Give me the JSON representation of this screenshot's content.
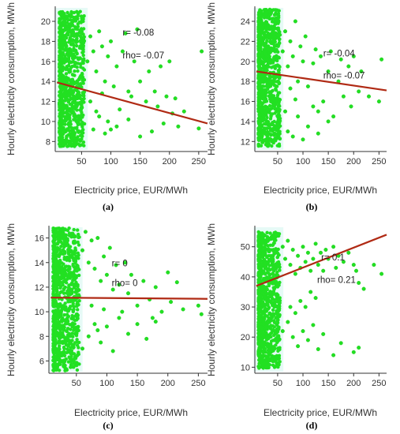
{
  "chart_data": [
    {
      "type": "scatter",
      "caption": "(a)",
      "ylabel": "Hourly electricity consumption, MWh",
      "xlabel": "Electricity price, EUR/MWh",
      "xticks": [
        50,
        100,
        150,
        200,
        250
      ],
      "yticks": [
        8,
        10,
        12,
        14,
        16,
        18,
        20
      ],
      "xlim": [
        5,
        265
      ],
      "ylim": [
        7,
        21.5
      ],
      "cloud": {
        "x": [
          12,
          55
        ],
        "y": [
          7.5,
          21
        ]
      },
      "sparse": [
        [
          60,
          16
        ],
        [
          65,
          18.5
        ],
        [
          70,
          17
        ],
        [
          75,
          15
        ],
        [
          80,
          19
        ],
        [
          85,
          17.5
        ],
        [
          90,
          14
        ],
        [
          95,
          16.5
        ],
        [
          100,
          18
        ],
        [
          105,
          13.5
        ],
        [
          110,
          15.5
        ],
        [
          120,
          17
        ],
        [
          125,
          18.8
        ],
        [
          130,
          13
        ],
        [
          140,
          16
        ],
        [
          145,
          19.2
        ],
        [
          150,
          14
        ],
        [
          160,
          12
        ],
        [
          165,
          15
        ],
        [
          175,
          13
        ],
        [
          180,
          11.5
        ],
        [
          185,
          15.5
        ],
        [
          195,
          12.5
        ],
        [
          200,
          16
        ],
        [
          205,
          10.8
        ],
        [
          210,
          12.3
        ],
        [
          215,
          9.5
        ],
        [
          225,
          11
        ],
        [
          250,
          9.3
        ],
        [
          255,
          17
        ],
        [
          70,
          9.2
        ],
        [
          80,
          10.5
        ],
        [
          90,
          8.8
        ],
        [
          110,
          9.5
        ],
        [
          130,
          10.2
        ],
        [
          150,
          8.5
        ],
        [
          170,
          9
        ],
        [
          190,
          9.8
        ],
        [
          65,
          12
        ],
        [
          75,
          11
        ],
        [
          95,
          10
        ],
        [
          115,
          11.2
        ],
        [
          135,
          12.5
        ],
        [
          85,
          12.8
        ],
        [
          100,
          9.2
        ]
      ],
      "regression": {
        "x": [
          8,
          265
        ],
        "y": [
          13.9,
          9.8
        ]
      },
      "stats": {
        "r": "r= -0.08",
        "rho": "rho= -0.07"
      },
      "stats_at": {
        "r": [
          120,
          18.6
        ],
        "rho": [
          120,
          16.3
        ]
      }
    },
    {
      "type": "scatter",
      "caption": "(b)",
      "ylabel": "Hourly electricity consumption, MWh",
      "xlabel": "Electricity price, EUR/MWh",
      "xticks": [
        50,
        100,
        150,
        200,
        250
      ],
      "yticks": [
        12,
        14,
        16,
        18,
        20,
        22,
        24
      ],
      "xlim": [
        5,
        265
      ],
      "ylim": [
        11,
        25.5
      ],
      "cloud": {
        "x": [
          12,
          55
        ],
        "y": [
          11.5,
          25.2
        ]
      },
      "sparse": [
        [
          60,
          21
        ],
        [
          65,
          23
        ],
        [
          70,
          19.5
        ],
        [
          75,
          22
        ],
        [
          80,
          20.5
        ],
        [
          85,
          24
        ],
        [
          90,
          18
        ],
        [
          95,
          21.5
        ],
        [
          100,
          20
        ],
        [
          105,
          22.5
        ],
        [
          110,
          17.5
        ],
        [
          120,
          19.8
        ],
        [
          125,
          21.2
        ],
        [
          130,
          15
        ],
        [
          135,
          20.5
        ],
        [
          140,
          16
        ],
        [
          150,
          19
        ],
        [
          155,
          21
        ],
        [
          160,
          14.5
        ],
        [
          170,
          18
        ],
        [
          175,
          20.2
        ],
        [
          180,
          16.5
        ],
        [
          190,
          19.5
        ],
        [
          195,
          15.5
        ],
        [
          200,
          20.5
        ],
        [
          210,
          17
        ],
        [
          215,
          19
        ],
        [
          230,
          16.5
        ],
        [
          250,
          16
        ],
        [
          255,
          20.2
        ],
        [
          70,
          13
        ],
        [
          80,
          12.5
        ],
        [
          90,
          14.5
        ],
        [
          110,
          13.5
        ],
        [
          130,
          12.8
        ],
        [
          150,
          14
        ],
        [
          100,
          12.2
        ],
        [
          120,
          15.5
        ],
        [
          85,
          16.2
        ],
        [
          75,
          17.3
        ],
        [
          65,
          15
        ]
      ],
      "regression": {
        "x": [
          8,
          265
        ],
        "y": [
          19.0,
          17.1
        ]
      },
      "stats": {
        "r": "r= -0.04",
        "rho": "rho= -0.07"
      },
      "stats_at": {
        "r": [
          140,
          20.5
        ],
        "rho": [
          140,
          18.3
        ]
      }
    },
    {
      "type": "scatter",
      "caption": "(c)",
      "ylabel": "Hourly electricity consumption, MWh",
      "xlabel": "Electricity price, EUR/MWh",
      "xticks": [
        50,
        100,
        150,
        200,
        250
      ],
      "yticks": [
        6,
        8,
        10,
        12,
        14,
        16
      ],
      "xlim": [
        5,
        265
      ],
      "ylim": [
        5,
        17
      ],
      "cloud": {
        "x": [
          12,
          55
        ],
        "y": [
          5.2,
          16.8
        ]
      },
      "sparse": [
        [
          60,
          15
        ],
        [
          65,
          16.5
        ],
        [
          70,
          14
        ],
        [
          75,
          15.8
        ],
        [
          80,
          13.5
        ],
        [
          85,
          16
        ],
        [
          90,
          12.5
        ],
        [
          95,
          14.5
        ],
        [
          100,
          13
        ],
        [
          105,
          15.2
        ],
        [
          110,
          11.8
        ],
        [
          115,
          13.8
        ],
        [
          120,
          12.2
        ],
        [
          130,
          14
        ],
        [
          135,
          11.5
        ],
        [
          140,
          13
        ],
        [
          150,
          10.5
        ],
        [
          160,
          12.5
        ],
        [
          170,
          11
        ],
        [
          175,
          9.5
        ],
        [
          180,
          12
        ],
        [
          190,
          10
        ],
        [
          200,
          13.2
        ],
        [
          205,
          10.8
        ],
        [
          215,
          12.4
        ],
        [
          225,
          10.2
        ],
        [
          250,
          10.5
        ],
        [
          255,
          9.8
        ],
        [
          70,
          8
        ],
        [
          80,
          9
        ],
        [
          90,
          7.5
        ],
        [
          100,
          8.8
        ],
        [
          110,
          6.8
        ],
        [
          120,
          9.5
        ],
        [
          135,
          8.2
        ],
        [
          150,
          9
        ],
        [
          165,
          7.8
        ],
        [
          180,
          9.2
        ],
        [
          75,
          10.5
        ],
        [
          95,
          10.2
        ],
        [
          125,
          10
        ],
        [
          85,
          8.5
        ],
        [
          60,
          7
        ]
      ],
      "regression": {
        "x": [
          8,
          265
        ],
        "y": [
          11.15,
          11.05
        ]
      },
      "stats": {
        "r": "r= 0",
        "rho": "rho= 0"
      },
      "stats_at": {
        "r": [
          108,
          13.7
        ],
        "rho": [
          108,
          12.1
        ]
      }
    },
    {
      "type": "scatter",
      "caption": "(d)",
      "ylabel": "Hourly electricity consumption, MWh",
      "xlabel": "Electricity price, EUR/MWh",
      "xticks": [
        50,
        100,
        150,
        200,
        250
      ],
      "yticks": [
        10,
        20,
        30,
        40,
        50
      ],
      "xlim": [
        5,
        265
      ],
      "ylim": [
        8,
        57
      ],
      "cloud": {
        "x": [
          12,
          55
        ],
        "y": [
          9.5,
          55
        ]
      },
      "sparse": [
        [
          60,
          50
        ],
        [
          65,
          46
        ],
        [
          70,
          52
        ],
        [
          75,
          44
        ],
        [
          80,
          49
        ],
        [
          85,
          41
        ],
        [
          90,
          47
        ],
        [
          95,
          43
        ],
        [
          100,
          50
        ],
        [
          105,
          45
        ],
        [
          110,
          48
        ],
        [
          115,
          42
        ],
        [
          120,
          46
        ],
        [
          125,
          51
        ],
        [
          130,
          44
        ],
        [
          135,
          48
        ],
        [
          140,
          42
        ],
        [
          145,
          49
        ],
        [
          150,
          46
        ],
        [
          160,
          50
        ],
        [
          165,
          43
        ],
        [
          170,
          47
        ],
        [
          180,
          45
        ],
        [
          190,
          48
        ],
        [
          200,
          44
        ],
        [
          205,
          42
        ],
        [
          210,
          38
        ],
        [
          220,
          36
        ],
        [
          240,
          44
        ],
        [
          255,
          41
        ],
        [
          70,
          25
        ],
        [
          80,
          20
        ],
        [
          90,
          17
        ],
        [
          100,
          22
        ],
        [
          110,
          19
        ],
        [
          120,
          24
        ],
        [
          130,
          16
        ],
        [
          140,
          21
        ],
        [
          160,
          14
        ],
        [
          175,
          18
        ],
        [
          200,
          15
        ],
        [
          210,
          16.5
        ],
        [
          85,
          28
        ],
        [
          95,
          32
        ],
        [
          105,
          30
        ],
        [
          115,
          35
        ],
        [
          125,
          33
        ],
        [
          60,
          22
        ],
        [
          75,
          30
        ]
      ],
      "regression": {
        "x": [
          8,
          265
        ],
        "y": [
          37.0,
          54.0
        ]
      },
      "stats": {
        "r": "r= 0.1",
        "rho": "rho= 0.21"
      },
      "stats_at": {
        "r": [
          136,
          45.5
        ],
        "rho": [
          128,
          38.0
        ]
      }
    }
  ],
  "colors": {
    "points": "#22e022",
    "point_edge": "#18c818",
    "regression": "#b02a14",
    "halo": "#b8f0e4",
    "axis": "#333333"
  }
}
